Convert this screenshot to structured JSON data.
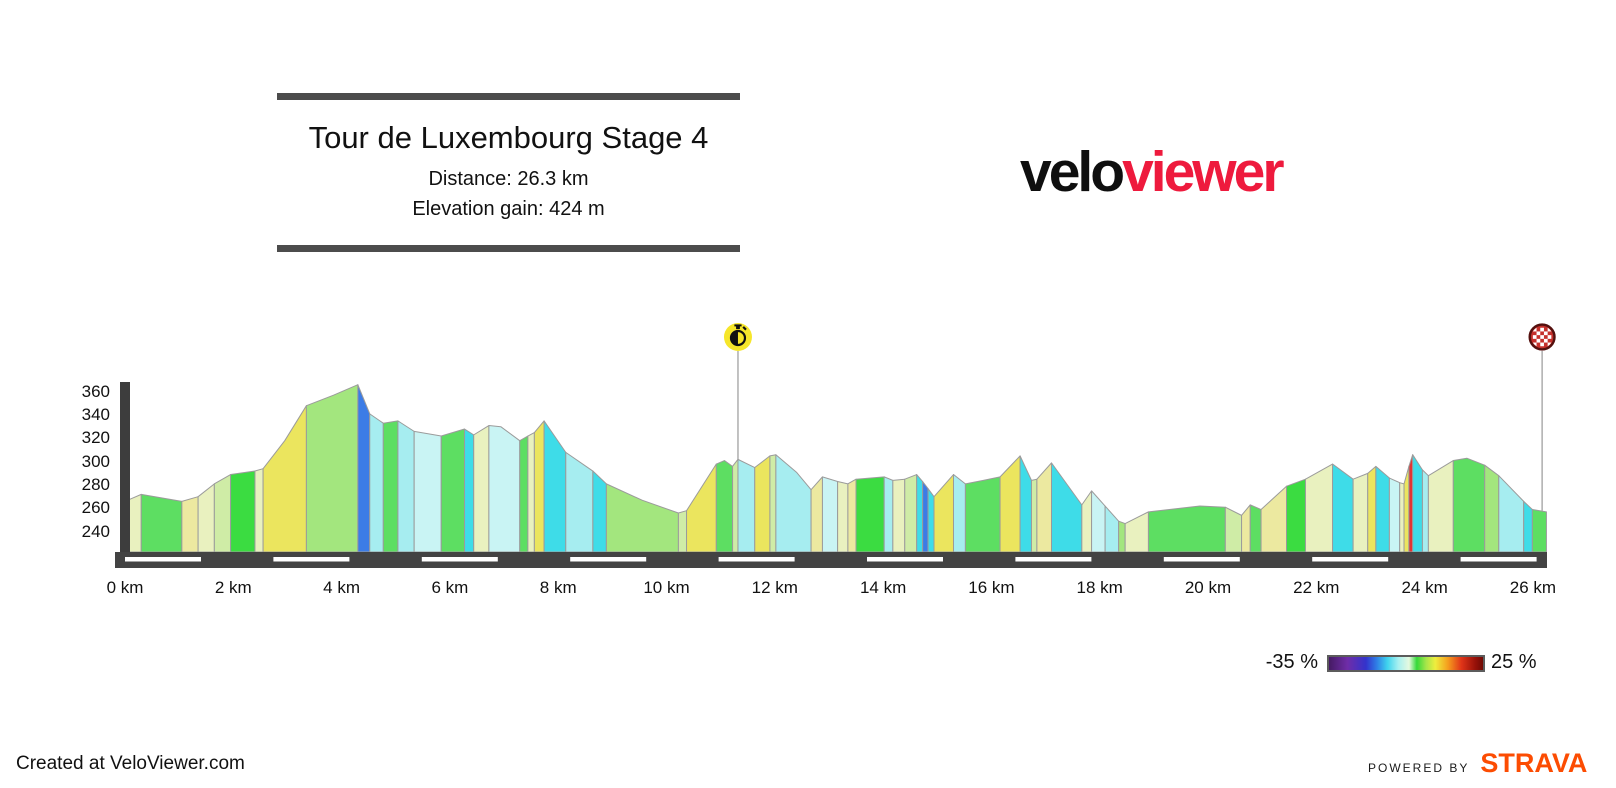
{
  "header": {
    "title": "Tour de Luxembourg Stage 4",
    "distance_label": "Distance: 26.3 km",
    "elevation_label": "Elevation gain: 424 m"
  },
  "logo": {
    "black_text": "velo",
    "red_text": "viewer",
    "red_color": "#ee1a3d"
  },
  "legend": {
    "min_label": "-35 %",
    "max_label": "25 %",
    "gradient_stops": [
      "#451a63 0%",
      "#6f2da8 12%",
      "#3333cc 24%",
      "#2f7fe6 31%",
      "#3fd4ee 38%",
      "#a8f0f0 45%",
      "#e6f9e0 52%",
      "#36d93a 57%",
      "#a5e54a 63%",
      "#eeee3e 69%",
      "#f5a01e 77%",
      "#e03418 86%",
      "#971109 95%",
      "#6f0a04 100%"
    ]
  },
  "footer": {
    "credit": "Created at VeloViewer.com",
    "powered_by": "POWERED BY",
    "strava": "STRAVA",
    "strava_color": "#fc4c02"
  },
  "chart_data": {
    "type": "area",
    "title": "Tour de Luxembourg Stage 4",
    "distance_km": 26.3,
    "elevation_gain_m": 424,
    "x_range_km": [
      0,
      26.3
    ],
    "y_ticks": [
      360,
      340,
      320,
      300,
      280,
      260,
      240
    ],
    "x_ticks": [
      {
        "km": 0,
        "label": "0 km"
      },
      {
        "km": 2,
        "label": "2 km"
      },
      {
        "km": 4,
        "label": "4 km"
      },
      {
        "km": 6,
        "label": "6 km"
      },
      {
        "km": 8,
        "label": "8 km"
      },
      {
        "km": 10,
        "label": "10 km"
      },
      {
        "km": 12,
        "label": "12 km"
      },
      {
        "km": 14,
        "label": "14 km"
      },
      {
        "km": 16,
        "label": "16 km"
      },
      {
        "km": 18,
        "label": "18 km"
      },
      {
        "km": 20,
        "label": "20 km"
      },
      {
        "km": 22,
        "label": "22 km"
      },
      {
        "km": 24,
        "label": "24 km"
      },
      {
        "km": 26,
        "label": "26 km"
      }
    ],
    "gradient_palette": {
      "cream": "#e9f1bf",
      "paleYellow": "#ece9a0",
      "paleGreen": "#cfeca6",
      "green": "#5dde62",
      "brightGreen": "#3bdc41",
      "lightGreen": "#a3e67e",
      "yellow": "#ebe55e",
      "blue": "#3c7ce6",
      "cyan": "#3edce8",
      "lightCyan": "#a6edf0",
      "paleCyan": "#c9f4f4",
      "red": "#e23434"
    },
    "segments": [
      {
        "c": "cream",
        "p": [
          [
            0.0,
            266
          ],
          [
            0.3,
            272
          ]
        ]
      },
      {
        "c": "green",
        "p": [
          [
            0.3,
            272
          ],
          [
            1.05,
            266
          ]
        ]
      },
      {
        "c": "paleYellow",
        "p": [
          [
            1.05,
            266
          ],
          [
            1.35,
            270
          ]
        ]
      },
      {
        "c": "cream",
        "p": [
          [
            1.35,
            270
          ],
          [
            1.65,
            281
          ]
        ]
      },
      {
        "c": "paleGreen",
        "p": [
          [
            1.65,
            281
          ],
          [
            1.95,
            289
          ]
        ]
      },
      {
        "c": "brightGreen",
        "p": [
          [
            1.95,
            289
          ],
          [
            2.4,
            292
          ]
        ]
      },
      {
        "c": "cream",
        "p": [
          [
            2.4,
            292
          ],
          [
            2.55,
            294
          ]
        ]
      },
      {
        "c": "yellow",
        "p": [
          [
            2.55,
            294
          ],
          [
            2.95,
            318
          ],
          [
            3.35,
            348
          ]
        ]
      },
      {
        "c": "lightGreen",
        "p": [
          [
            3.35,
            348
          ],
          [
            3.85,
            357
          ],
          [
            4.3,
            366
          ]
        ]
      },
      {
        "c": "blue",
        "p": [
          [
            4.3,
            366
          ],
          [
            4.52,
            341
          ]
        ]
      },
      {
        "c": "lightCyan",
        "p": [
          [
            4.52,
            341
          ],
          [
            4.77,
            333
          ]
        ]
      },
      {
        "c": "green",
        "p": [
          [
            4.77,
            333
          ],
          [
            5.04,
            335
          ]
        ]
      },
      {
        "c": "lightCyan",
        "p": [
          [
            5.04,
            335
          ],
          [
            5.34,
            326
          ]
        ]
      },
      {
        "c": "paleCyan",
        "p": [
          [
            5.34,
            326
          ],
          [
            5.84,
            322
          ]
        ]
      },
      {
        "c": "green",
        "p": [
          [
            5.84,
            322
          ],
          [
            6.27,
            328
          ]
        ]
      },
      {
        "c": "cyan",
        "p": [
          [
            6.27,
            328
          ],
          [
            6.44,
            323
          ]
        ]
      },
      {
        "c": "cream",
        "p": [
          [
            6.44,
            323
          ],
          [
            6.72,
            331
          ]
        ]
      },
      {
        "c": "paleCyan",
        "p": [
          [
            6.72,
            331
          ],
          [
            6.94,
            330
          ],
          [
            7.29,
            318
          ]
        ]
      },
      {
        "c": "green",
        "p": [
          [
            7.29,
            318
          ],
          [
            7.44,
            322
          ]
        ]
      },
      {
        "c": "cream",
        "p": [
          [
            7.44,
            322
          ],
          [
            7.56,
            325
          ]
        ]
      },
      {
        "c": "yellow",
        "p": [
          [
            7.56,
            325
          ],
          [
            7.74,
            335
          ]
        ]
      },
      {
        "c": "cyan",
        "p": [
          [
            7.74,
            335
          ],
          [
            8.14,
            308
          ]
        ]
      },
      {
        "c": "lightCyan",
        "p": [
          [
            8.14,
            308
          ],
          [
            8.64,
            292
          ]
        ]
      },
      {
        "c": "cyan",
        "p": [
          [
            8.64,
            292
          ],
          [
            8.89,
            281
          ]
        ]
      },
      {
        "c": "lightGreen",
        "p": [
          [
            8.89,
            281
          ],
          [
            9.55,
            267
          ],
          [
            10.22,
            256
          ]
        ]
      },
      {
        "c": "paleGreen",
        "p": [
          [
            10.22,
            256
          ],
          [
            10.37,
            258
          ]
        ]
      },
      {
        "c": "yellow",
        "p": [
          [
            10.37,
            258
          ],
          [
            10.92,
            298
          ]
        ]
      },
      {
        "c": "green",
        "p": [
          [
            10.92,
            298
          ],
          [
            11.07,
            301
          ],
          [
            11.22,
            296
          ]
        ]
      },
      {
        "c": "paleGreen",
        "p": [
          [
            11.22,
            296
          ],
          [
            11.32,
            302
          ]
        ]
      },
      {
        "c": "lightCyan",
        "p": [
          [
            11.32,
            302
          ],
          [
            11.63,
            295
          ]
        ]
      },
      {
        "c": "yellow",
        "p": [
          [
            11.63,
            295
          ],
          [
            11.91,
            305
          ]
        ]
      },
      {
        "c": "paleGreen",
        "p": [
          [
            11.91,
            305
          ],
          [
            12.02,
            306
          ]
        ]
      },
      {
        "c": "lightCyan",
        "p": [
          [
            12.02,
            306
          ],
          [
            12.4,
            291
          ],
          [
            12.67,
            276
          ]
        ]
      },
      {
        "c": "paleYellow",
        "p": [
          [
            12.67,
            276
          ],
          [
            12.88,
            287
          ]
        ]
      },
      {
        "c": "paleCyan",
        "p": [
          [
            12.88,
            287
          ],
          [
            13.16,
            283
          ]
        ]
      },
      {
        "c": "cream",
        "p": [
          [
            13.16,
            283
          ],
          [
            13.35,
            281
          ]
        ]
      },
      {
        "c": "paleYellow",
        "p": [
          [
            13.35,
            281
          ],
          [
            13.5,
            285
          ]
        ]
      },
      {
        "c": "brightGreen",
        "p": [
          [
            13.5,
            285
          ],
          [
            14.02,
            287
          ]
        ]
      },
      {
        "c": "lightCyan",
        "p": [
          [
            14.02,
            287
          ],
          [
            14.18,
            284
          ]
        ]
      },
      {
        "c": "cream",
        "p": [
          [
            14.18,
            284
          ],
          [
            14.4,
            285
          ]
        ]
      },
      {
        "c": "paleGreen",
        "p": [
          [
            14.4,
            285
          ],
          [
            14.62,
            289
          ]
        ]
      },
      {
        "c": "cyan",
        "p": [
          [
            14.62,
            289
          ],
          [
            14.73,
            283
          ]
        ]
      },
      {
        "c": "blue",
        "p": [
          [
            14.73,
            283
          ],
          [
            14.83,
            277
          ]
        ]
      },
      {
        "c": "cyan",
        "p": [
          [
            14.83,
            277
          ],
          [
            14.94,
            270
          ]
        ]
      },
      {
        "c": "yellow",
        "p": [
          [
            14.94,
            270
          ],
          [
            15.3,
            289
          ]
        ]
      },
      {
        "c": "lightCyan",
        "p": [
          [
            15.3,
            289
          ],
          [
            15.52,
            281
          ]
        ]
      },
      {
        "c": "green",
        "p": [
          [
            15.52,
            281
          ],
          [
            15.85,
            284
          ],
          [
            16.16,
            287
          ]
        ]
      },
      {
        "c": "yellow",
        "p": [
          [
            16.16,
            287
          ],
          [
            16.53,
            305
          ]
        ]
      },
      {
        "c": "cyan",
        "p": [
          [
            16.53,
            305
          ],
          [
            16.74,
            284
          ]
        ]
      },
      {
        "c": "paleGreen",
        "p": [
          [
            16.74,
            284
          ],
          [
            16.84,
            285
          ]
        ]
      },
      {
        "c": "paleYellow",
        "p": [
          [
            16.84,
            285
          ],
          [
            17.11,
            299
          ]
        ]
      },
      {
        "c": "cyan",
        "p": [
          [
            17.11,
            299
          ],
          [
            17.67,
            263
          ]
        ]
      },
      {
        "c": "cream",
        "p": [
          [
            17.67,
            263
          ],
          [
            17.85,
            275
          ]
        ]
      },
      {
        "c": "paleCyan",
        "p": [
          [
            17.85,
            275
          ],
          [
            18.1,
            262
          ]
        ]
      },
      {
        "c": "lightCyan",
        "p": [
          [
            18.1,
            262
          ],
          [
            18.35,
            249
          ]
        ]
      },
      {
        "c": "lightGreen",
        "p": [
          [
            18.35,
            249
          ],
          [
            18.47,
            247
          ]
        ]
      },
      {
        "c": "cream",
        "p": [
          [
            18.47,
            247
          ],
          [
            18.9,
            257
          ]
        ]
      },
      {
        "c": "green",
        "p": [
          [
            18.9,
            257
          ],
          [
            19.85,
            262
          ],
          [
            20.32,
            261
          ]
        ]
      },
      {
        "c": "paleGreen",
        "p": [
          [
            20.32,
            261
          ],
          [
            20.62,
            254
          ]
        ]
      },
      {
        "c": "paleYellow",
        "p": [
          [
            20.62,
            254
          ],
          [
            20.78,
            263
          ]
        ]
      },
      {
        "c": "green",
        "p": [
          [
            20.78,
            263
          ],
          [
            20.98,
            259
          ]
        ]
      },
      {
        "c": "paleYellow",
        "p": [
          [
            20.98,
            259
          ],
          [
            21.45,
            279
          ]
        ]
      },
      {
        "c": "brightGreen",
        "p": [
          [
            21.45,
            279
          ],
          [
            21.8,
            285
          ]
        ]
      },
      {
        "c": "cream",
        "p": [
          [
            21.8,
            285
          ],
          [
            22.3,
            298
          ]
        ]
      },
      {
        "c": "cyan",
        "p": [
          [
            22.3,
            298
          ],
          [
            22.68,
            285
          ]
        ]
      },
      {
        "c": "cream",
        "p": [
          [
            22.68,
            285
          ],
          [
            22.95,
            290
          ]
        ]
      },
      {
        "c": "yellow",
        "p": [
          [
            22.95,
            290
          ],
          [
            23.1,
            296
          ]
        ]
      },
      {
        "c": "cyan",
        "p": [
          [
            23.1,
            296
          ],
          [
            23.35,
            286
          ]
        ]
      },
      {
        "c": "paleCyan",
        "p": [
          [
            23.35,
            286
          ],
          [
            23.54,
            282
          ]
        ]
      },
      {
        "c": "cream",
        "p": [
          [
            23.54,
            282
          ],
          [
            23.62,
            281
          ]
        ]
      },
      {
        "c": "yellow",
        "p": [
          [
            23.62,
            281
          ],
          [
            23.71,
            296
          ]
        ]
      },
      {
        "c": "red",
        "p": [
          [
            23.71,
            296
          ],
          [
            23.78,
            306
          ]
        ]
      },
      {
        "c": "cyan",
        "p": [
          [
            23.78,
            306
          ],
          [
            23.96,
            293
          ]
        ]
      },
      {
        "c": "lightCyan",
        "p": [
          [
            23.96,
            293
          ],
          [
            24.07,
            288
          ]
        ]
      },
      {
        "c": "cream",
        "p": [
          [
            24.07,
            288
          ],
          [
            24.53,
            301
          ]
        ]
      },
      {
        "c": "green",
        "p": [
          [
            24.53,
            301
          ],
          [
            24.78,
            303
          ],
          [
            25.11,
            297
          ]
        ]
      },
      {
        "c": "lightGreen",
        "p": [
          [
            25.11,
            297
          ],
          [
            25.37,
            288
          ]
        ]
      },
      {
        "c": "lightCyan",
        "p": [
          [
            25.37,
            288
          ],
          [
            25.83,
            266
          ]
        ]
      },
      {
        "c": "cyan",
        "p": [
          [
            25.83,
            266
          ],
          [
            25.99,
            259
          ]
        ]
      },
      {
        "c": "green",
        "p": [
          [
            25.99,
            259
          ],
          [
            26.25,
            257
          ]
        ]
      }
    ],
    "markers": [
      {
        "name": "timer-marker",
        "icon": "stopwatch",
        "km": 11.32,
        "elev": 302,
        "circle_color": "#f6e62a",
        "glyph_color": "#111111"
      },
      {
        "name": "finish-marker",
        "icon": "checkered-flag",
        "km": 26.17,
        "elev": 258,
        "circle_color": "#c5312c",
        "border_color": "#54100e",
        "check_color": "#ffffff"
      }
    ]
  }
}
